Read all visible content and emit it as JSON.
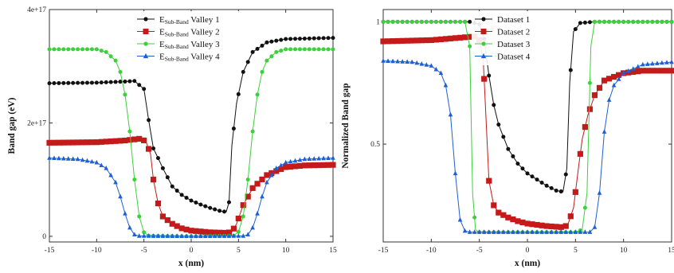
{
  "chart_data": [
    {
      "type": "line",
      "xlabel": "x (nm)",
      "ylabel": "Band gap (eV)",
      "xlim": [
        -15,
        15
      ],
      "ylim": [
        -1e+16,
        4e+17
      ],
      "xticks": [
        -15,
        -10,
        -5,
        0,
        5,
        10,
        15
      ],
      "xtick_labels": [
        "-15",
        "-10",
        "-5",
        "0",
        "5",
        "10",
        "15"
      ],
      "yticks": [
        0,
        2e+17,
        4e+17
      ],
      "ytick_labels": [
        "0",
        "2e+17",
        "4e+17"
      ],
      "grid": false,
      "legend_position": "top-center",
      "series": [
        {
          "name": "E",
          "name_sub": "Sub-Band",
          "name_suffix": " Valley 1",
          "color": "#111111",
          "marker": "circle",
          "points": [
            [
              -15,
              2.7e+17
            ],
            [
              -10,
              2.71e+17
            ],
            [
              -7,
              2.73e+17
            ],
            [
              -6,
              2.74e+17
            ],
            [
              -5,
              2.6e+17
            ],
            [
              -4.5,
              2.05e+17
            ],
            [
              -4,
              1.55e+17
            ],
            [
              -3.5,
              1.38e+17
            ],
            [
              -3,
              1.2e+17
            ],
            [
              -2,
              8.8e+16
            ],
            [
              -1,
              7.3e+16
            ],
            [
              0,
              6.3e+16
            ],
            [
              1,
              5.6e+16
            ],
            [
              2,
              5e+16
            ],
            [
              3,
              4.5e+16
            ],
            [
              3.7,
              4.3e+16
            ],
            [
              4,
              6e+16
            ],
            [
              4.3,
              1.6e+17
            ],
            [
              4.8,
              2.35e+17
            ],
            [
              5.5,
              2.9e+17
            ],
            [
              6.5,
              3.25e+17
            ],
            [
              8,
              3.42e+17
            ],
            [
              10,
              3.48e+17
            ],
            [
              15,
              3.5e+17
            ]
          ]
        },
        {
          "name": "E",
          "name_sub": "Sub-Band",
          "name_suffix": " Valley 2",
          "color": "#c41a1a",
          "marker": "square",
          "points": [
            [
              -15,
              1.65e+17
            ],
            [
              -10,
              1.66e+17
            ],
            [
              -7,
              1.69e+17
            ],
            [
              -5.5,
              1.72e+17
            ],
            [
              -4.8,
              1.68e+17
            ],
            [
              -4.3,
              1.45e+17
            ],
            [
              -4,
              1e+17
            ],
            [
              -3.5,
              5.8e+16
            ],
            [
              -3,
              3.5e+16
            ],
            [
              -2,
              2.2e+16
            ],
            [
              -1,
              1.4e+16
            ],
            [
              0,
              1e+16
            ],
            [
              2,
              7000000000000000.0
            ],
            [
              3.8,
              6000000000000000.0
            ],
            [
              4.3,
              8000000000000000.0
            ],
            [
              4.8,
              2.2e+16
            ],
            [
              5.5,
              5.5e+16
            ],
            [
              6.5,
              8.5e+16
            ],
            [
              8,
              1.08e+17
            ],
            [
              10,
              1.22e+17
            ],
            [
              12,
              1.25e+17
            ],
            [
              15,
              1.26e+17
            ]
          ]
        },
        {
          "name": "E",
          "name_sub": "Sub-Band",
          "name_suffix": " Valley 3",
          "color": "#3bd13b",
          "marker": "circle",
          "points": [
            [
              -15,
              3.3e+17
            ],
            [
              -10,
              3.3e+17
            ],
            [
              -9,
              3.25e+17
            ],
            [
              -8,
              3.1e+17
            ],
            [
              -7.5,
              2.9e+17
            ],
            [
              -7,
              2.5e+17
            ],
            [
              -6.5,
              1.85e+17
            ],
            [
              -6,
              1e+17
            ],
            [
              -5.5,
              3.5e+16
            ],
            [
              -5,
              7000000000000000.0
            ],
            [
              -4.5,
              1000000000000000.0
            ],
            [
              0,
              0
            ],
            [
              4.5,
              1000000000000000.0
            ],
            [
              5,
              8000000000000000.0
            ],
            [
              5.5,
              3.5e+16
            ],
            [
              6,
              1e+17
            ],
            [
              6.5,
              1.85e+17
            ],
            [
              7,
              2.5e+17
            ],
            [
              7.5,
              2.9e+17
            ],
            [
              8,
              3.1e+17
            ],
            [
              9,
              3.25e+17
            ],
            [
              10,
              3.3e+17
            ],
            [
              15,
              3.3e+17
            ]
          ]
        },
        {
          "name": "E",
          "name_sub": "Sub-Band",
          "name_suffix": " Valley 4",
          "color": "#1f5fd6",
          "marker": "triangle",
          "points": [
            [
              -15,
              1.38e+17
            ],
            [
              -12,
              1.36e+17
            ],
            [
              -10,
              1.3e+17
            ],
            [
              -9,
              1.2e+17
            ],
            [
              -8,
              9.5e+16
            ],
            [
              -7.5,
              7e+16
            ],
            [
              -7,
              4e+16
            ],
            [
              -6.5,
              1.5e+16
            ],
            [
              -6,
              3000000000000000.0
            ],
            [
              -5.5,
              500000000000000.0
            ],
            [
              0,
              0
            ],
            [
              5.5,
              500000000000000.0
            ],
            [
              6,
              3000000000000000.0
            ],
            [
              6.5,
              1.5e+16
            ],
            [
              7,
              4e+16
            ],
            [
              7.5,
              7e+16
            ],
            [
              8,
              9.5e+16
            ],
            [
              9,
              1.2e+17
            ],
            [
              10,
              1.3e+17
            ],
            [
              12,
              1.36e+17
            ],
            [
              15,
              1.38e+17
            ]
          ]
        }
      ]
    },
    {
      "type": "line",
      "xlabel": "x (nm)",
      "ylabel": "Normalized Band gap",
      "xlim": [
        -15,
        15
      ],
      "ylim": [
        0.1,
        1.05
      ],
      "xticks": [
        -15,
        -10,
        -5,
        0,
        5,
        10,
        15
      ],
      "xtick_labels": [
        "-15",
        "-10",
        "-5",
        "0",
        "5",
        "10",
        "15"
      ],
      "yticks": [
        0.5,
        1
      ],
      "ytick_labels": [
        "0.5",
        "1"
      ],
      "grid": false,
      "legend_position": "top-center",
      "series": [
        {
          "name": "Dataset 1",
          "color": "#111111",
          "marker": "circle",
          "points": [
            [
              -15,
              1.0
            ],
            [
              -6,
              1.0
            ],
            [
              -5,
              0.99
            ],
            [
              -4.5,
              0.93
            ],
            [
              -4,
              0.78
            ],
            [
              -3.5,
              0.66
            ],
            [
              -3,
              0.58
            ],
            [
              -2,
              0.48
            ],
            [
              -1,
              0.42
            ],
            [
              0,
              0.38
            ],
            [
              1,
              0.355
            ],
            [
              2,
              0.33
            ],
            [
              3,
              0.31
            ],
            [
              3.7,
              0.305
            ],
            [
              4.1,
              0.4
            ],
            [
              4.4,
              0.75
            ],
            [
              4.8,
              0.96
            ],
            [
              5.5,
              0.995
            ],
            [
              7,
              1.0
            ],
            [
              15,
              1.0
            ]
          ]
        },
        {
          "name": "Dataset 2",
          "color": "#c41a1a",
          "marker": "square",
          "points": [
            [
              -15,
              0.92
            ],
            [
              -10,
              0.925
            ],
            [
              -7,
              0.935
            ],
            [
              -5.5,
              0.94
            ],
            [
              -5,
              0.925
            ],
            [
              -4.6,
              0.85
            ],
            [
              -4.3,
              0.6
            ],
            [
              -4,
              0.35
            ],
            [
              -3.5,
              0.25
            ],
            [
              -3,
              0.22
            ],
            [
              -2,
              0.2
            ],
            [
              -1,
              0.185
            ],
            [
              0,
              0.175
            ],
            [
              2,
              0.165
            ],
            [
              3.8,
              0.16
            ],
            [
              4.2,
              0.17
            ],
            [
              4.8,
              0.24
            ],
            [
              5.3,
              0.4
            ],
            [
              5.7,
              0.52
            ],
            [
              6.3,
              0.62
            ],
            [
              7,
              0.7
            ],
            [
              8,
              0.76
            ],
            [
              10,
              0.79
            ],
            [
              12,
              0.8
            ],
            [
              15,
              0.8
            ]
          ]
        },
        {
          "name": "Dataset 3",
          "color": "#3bd13b",
          "marker": "circle",
          "points": [
            [
              -15,
              1.0
            ],
            [
              -6.5,
              1.0
            ],
            [
              -6,
              0.9
            ],
            [
              -5.7,
              0.3
            ],
            [
              -5.4,
              0.15
            ],
            [
              -5,
              0.14
            ],
            [
              0,
              0.14
            ],
            [
              5,
              0.14
            ],
            [
              5.7,
              0.15
            ],
            [
              6.2,
              0.3
            ],
            [
              6.6,
              0.9
            ],
            [
              7,
              1.0
            ],
            [
              15,
              1.0
            ]
          ]
        },
        {
          "name": "Dataset 4",
          "color": "#1f5fd6",
          "marker": "triangle",
          "points": [
            [
              -15,
              0.84
            ],
            [
              -12,
              0.835
            ],
            [
              -10,
              0.82
            ],
            [
              -9,
              0.79
            ],
            [
              -8.5,
              0.74
            ],
            [
              -8,
              0.62
            ],
            [
              -7.5,
              0.38
            ],
            [
              -7,
              0.19
            ],
            [
              -6.5,
              0.145
            ],
            [
              -6,
              0.14
            ],
            [
              0,
              0.14
            ],
            [
              6.5,
              0.14
            ],
            [
              7,
              0.16
            ],
            [
              7.5,
              0.3
            ],
            [
              8,
              0.55
            ],
            [
              8.5,
              0.68
            ],
            [
              9,
              0.74
            ],
            [
              10,
              0.79
            ],
            [
              12,
              0.825
            ],
            [
              15,
              0.835
            ]
          ]
        }
      ]
    }
  ]
}
